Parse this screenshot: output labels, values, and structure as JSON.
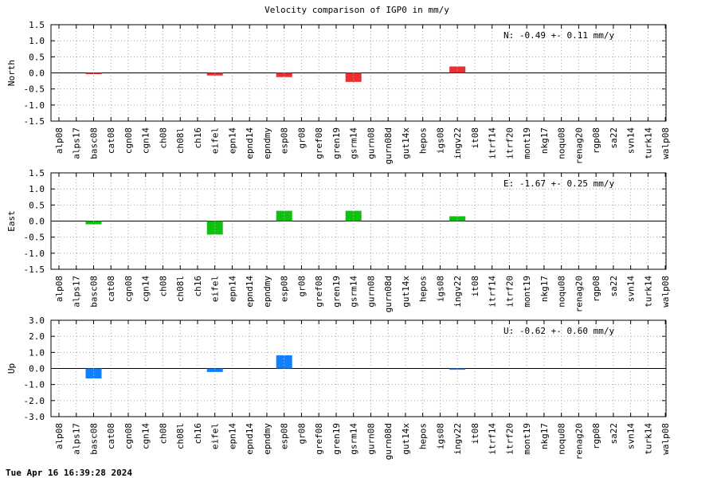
{
  "title": "Velocity comparison of IGP0 in mm/y",
  "footer": "Tue Apr 16 16:39:28 2024",
  "colors": {
    "north": "#e83030",
    "east": "#10c010",
    "up": "#1080ff"
  },
  "chart_data": [
    {
      "type": "bar",
      "ylabel": "North",
      "stat_text": "N:  -0.49 +-  0.11 mm/y",
      "ylim": [
        -1.5,
        1.5
      ],
      "yticks": [
        -1.5,
        -1.0,
        -0.5,
        0.0,
        0.5,
        1.0,
        1.5
      ],
      "ytick_labels": [
        "-1.5",
        "-1.0",
        "-0.5",
        "0.0",
        "0.5",
        "1.0",
        "1.5"
      ],
      "color_key": "north",
      "categories": [
        "alp08",
        "alps17",
        "basc08",
        "cat08",
        "cgn08",
        "cgn14",
        "ch08",
        "ch08l",
        "ch16",
        "eifel",
        "epn14",
        "epnd14",
        "epndmy",
        "esp08",
        "gr08",
        "gref08",
        "gren19",
        "gsrm14",
        "gurn08",
        "gurn08d",
        "gut14x",
        "hepos",
        "igs08",
        "ingv22",
        "it08",
        "itrf14",
        "itrf20",
        "mont19",
        "nkg17",
        "noqu08",
        "renag20",
        "rgp08",
        "sa22",
        "svn14",
        "turk14",
        "walp08"
      ],
      "values": [
        0,
        0,
        -0.03,
        0,
        0,
        0,
        0,
        0,
        0,
        -0.08,
        0,
        0,
        0,
        -0.13,
        0,
        0,
        0,
        -0.28,
        0,
        0,
        0,
        0,
        0,
        0.2,
        0,
        0,
        0,
        0,
        0,
        0,
        0,
        0,
        0,
        0,
        0,
        0
      ]
    },
    {
      "type": "bar",
      "ylabel": "East",
      "stat_text": "E:  -1.67 +-  0.25 mm/y",
      "ylim": [
        -1.5,
        1.5
      ],
      "yticks": [
        -1.5,
        -1.0,
        -0.5,
        0.0,
        0.5,
        1.0,
        1.5
      ],
      "ytick_labels": [
        "-1.5",
        "-1.0",
        "-0.5",
        "0.0",
        "0.5",
        "1.0",
        "1.5"
      ],
      "color_key": "east",
      "categories": [
        "alp08",
        "alps17",
        "basc08",
        "cat08",
        "cgn08",
        "cgn14",
        "ch08",
        "ch08l",
        "ch16",
        "eifel",
        "epn14",
        "epnd14",
        "epndmy",
        "esp08",
        "gr08",
        "gref08",
        "gren19",
        "gsrm14",
        "gurn08",
        "gurn08d",
        "gut14x",
        "hepos",
        "igs08",
        "ingv22",
        "it08",
        "itrf14",
        "itrf20",
        "mont19",
        "nkg17",
        "noqu08",
        "renag20",
        "rgp08",
        "sa22",
        "svn14",
        "turk14",
        "walp08"
      ],
      "values": [
        0,
        0,
        -0.1,
        0,
        0,
        0,
        0,
        0,
        0,
        -0.42,
        0,
        0,
        0,
        0.32,
        0,
        0,
        0,
        0.32,
        0,
        0,
        0,
        0,
        0,
        0.15,
        0,
        0,
        0,
        0,
        0,
        0,
        0,
        0,
        0,
        0,
        0,
        0
      ]
    },
    {
      "type": "bar",
      "ylabel": "Up",
      "stat_text": "U:  -0.62 +-  0.60 mm/y",
      "ylim": [
        -3.0,
        3.0
      ],
      "yticks": [
        -3.0,
        -2.0,
        -1.0,
        0.0,
        1.0,
        2.0,
        3.0
      ],
      "ytick_labels": [
        "-3.0",
        "-2.0",
        "-1.0",
        "0.0",
        "1.0",
        "2.0",
        "3.0"
      ],
      "color_key": "up",
      "categories": [
        "alp08",
        "alps17",
        "basc08",
        "cat08",
        "cgn08",
        "cgn14",
        "ch08",
        "ch08l",
        "ch16",
        "eifel",
        "epn14",
        "epnd14",
        "epndmy",
        "esp08",
        "gr08",
        "gref08",
        "gren19",
        "gsrm14",
        "gurn08",
        "gurn08d",
        "gut14x",
        "hepos",
        "igs08",
        "ingv22",
        "it08",
        "itrf14",
        "itrf20",
        "mont19",
        "nkg17",
        "noqu08",
        "renag20",
        "rgp08",
        "sa22",
        "svn14",
        "turk14",
        "walp08"
      ],
      "values": [
        0,
        0,
        -0.62,
        0,
        0,
        0,
        0,
        0,
        0,
        -0.22,
        0,
        0,
        0,
        0.82,
        0,
        0,
        0,
        0,
        0,
        0,
        0,
        0,
        0,
        -0.08,
        0,
        0,
        0,
        0,
        0,
        0,
        0,
        0,
        0,
        0,
        0,
        0
      ]
    }
  ]
}
